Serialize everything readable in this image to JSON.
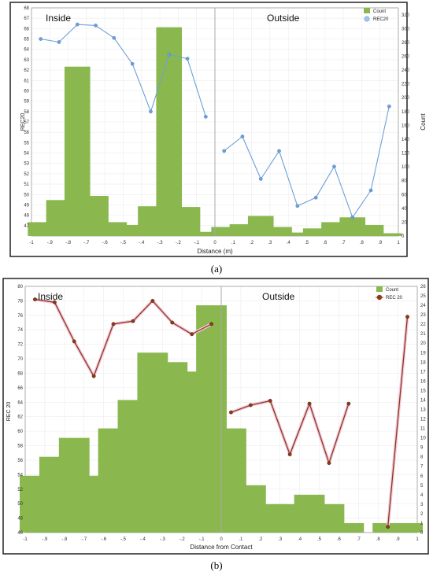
{
  "caption_a": "(a)",
  "caption_b": "(b)",
  "chart_data": [
    {
      "type": "bar+line",
      "panel_labels": {
        "left": "Inside",
        "right": "Outside"
      },
      "xlabel": "Distance (m)",
      "ylabel_left": "REC20",
      "ylabel_right": "Count",
      "xlim": [
        -1,
        1
      ],
      "ylim_left": [
        46,
        68
      ],
      "ylim_right": [
        0,
        330
      ],
      "x_ticks": [
        -1,
        -0.9,
        -0.8,
        -0.7,
        -0.6,
        -0.5,
        -0.4,
        -0.3,
        -0.2,
        -0.1,
        0,
        0.1,
        0.2,
        0.3,
        0.4,
        0.5,
        0.6,
        0.7,
        0.8,
        0.9,
        1
      ],
      "y_left_ticks": [
        47,
        48,
        49,
        50,
        51,
        52,
        53,
        54,
        55,
        56,
        57,
        58,
        59,
        60,
        61,
        62,
        63,
        64,
        65,
        66,
        67,
        68
      ],
      "y_right_ticks": [
        0,
        20,
        40,
        60,
        80,
        100,
        120,
        140,
        160,
        180,
        200,
        220,
        240,
        260,
        280,
        300,
        320
      ],
      "legend": [
        "Count",
        "REC20"
      ],
      "legend_position": "top-right",
      "series": [
        {
          "name": "Count",
          "kind": "bar",
          "axis": "right",
          "color": "#8ab84e",
          "x": [
            -0.95,
            -0.85,
            -0.75,
            -0.65,
            -0.55,
            -0.45,
            -0.35,
            -0.25,
            -0.15,
            -0.05,
            0.05,
            0.15,
            0.25,
            0.35,
            0.45,
            0.55,
            0.65,
            0.75,
            0.85,
            0.95
          ],
          "values": [
            20,
            52,
            245,
            58,
            20,
            16,
            43,
            302,
            42,
            6,
            13,
            17,
            29,
            13,
            5,
            11,
            20,
            27,
            16,
            4
          ]
        },
        {
          "name": "REC20",
          "kind": "line",
          "axis": "left",
          "color": "#6f9fd8",
          "x": [
            -0.95,
            -0.85,
            -0.75,
            -0.65,
            -0.55,
            -0.45,
            -0.35,
            -0.25,
            -0.15,
            -0.05,
            0.05,
            0.15,
            0.25,
            0.35,
            0.45,
            0.55,
            0.65,
            0.75,
            0.85,
            0.95
          ],
          "values": [
            65,
            64.7,
            66.4,
            66.3,
            65.1,
            62.6,
            58,
            63.5,
            63.1,
            57.5,
            54.2,
            55.6,
            51.5,
            54.2,
            48.9,
            49.7,
            52.7,
            47.8,
            50.4,
            58.5
          ]
        }
      ]
    },
    {
      "type": "bar+line",
      "panel_labels": {
        "left": "Inside",
        "right": "Outside"
      },
      "xlabel": "Distance from Contact",
      "ylabel_left": "REC 20",
      "ylabel_right": "",
      "xlim": [
        -1,
        1
      ],
      "ylim_left": [
        46,
        80
      ],
      "ylim_right": [
        0,
        26
      ],
      "x_ticks": [
        -1,
        -0.9,
        -0.8,
        -0.7,
        -0.6,
        -0.5,
        -0.4,
        -0.3,
        -0.2,
        -0.1,
        0,
        0.1,
        0.2,
        0.3,
        0.4,
        0.5,
        0.6,
        0.7,
        0.8,
        0.9,
        1
      ],
      "y_left_ticks": [
        46,
        48,
        50,
        52,
        54,
        56,
        58,
        60,
        62,
        64,
        66,
        68,
        70,
        72,
        74,
        76,
        78,
        80
      ],
      "y_right_ticks": [
        0,
        1,
        2,
        3,
        4,
        5,
        6,
        7,
        8,
        9,
        10,
        11,
        12,
        13,
        14,
        15,
        16,
        17,
        18,
        19,
        20,
        21,
        22,
        23,
        24,
        25,
        26
      ],
      "legend": [
        "Count",
        "REC 20"
      ],
      "legend_position": "top-right",
      "series": [
        {
          "name": "Count",
          "kind": "bar",
          "axis": "right",
          "color": "#8ab84e",
          "x": [
            -0.95,
            -0.85,
            -0.75,
            -0.65,
            -0.55,
            -0.45,
            -0.35,
            -0.25,
            -0.15,
            -0.05,
            0.05,
            0.15,
            0.25,
            0.35,
            0.45,
            0.55,
            0.65,
            0.75,
            0.85,
            0.95
          ],
          "values": [
            6,
            8,
            10,
            6,
            11,
            14,
            19,
            18,
            17,
            24,
            11,
            5,
            3,
            3,
            4,
            3,
            1,
            0,
            1,
            1
          ]
        },
        {
          "name": "REC 20",
          "kind": "line",
          "axis": "left",
          "color": "#8b3a1a",
          "x": [
            -0.95,
            -0.85,
            -0.75,
            -0.65,
            -0.55,
            -0.45,
            -0.35,
            -0.25,
            -0.15,
            -0.05,
            0.05,
            0.15,
            0.25,
            0.35,
            0.45,
            0.55,
            0.65,
            0.75,
            0.85,
            0.95
          ],
          "values": [
            78.2,
            77.8,
            72.4,
            67.6,
            74.8,
            75.2,
            78,
            75,
            73.4,
            74.8,
            62.6,
            63.6,
            64.2,
            56.8,
            63.8,
            55.6,
            63.8,
            null,
            46.8,
            75.8
          ]
        }
      ]
    }
  ]
}
